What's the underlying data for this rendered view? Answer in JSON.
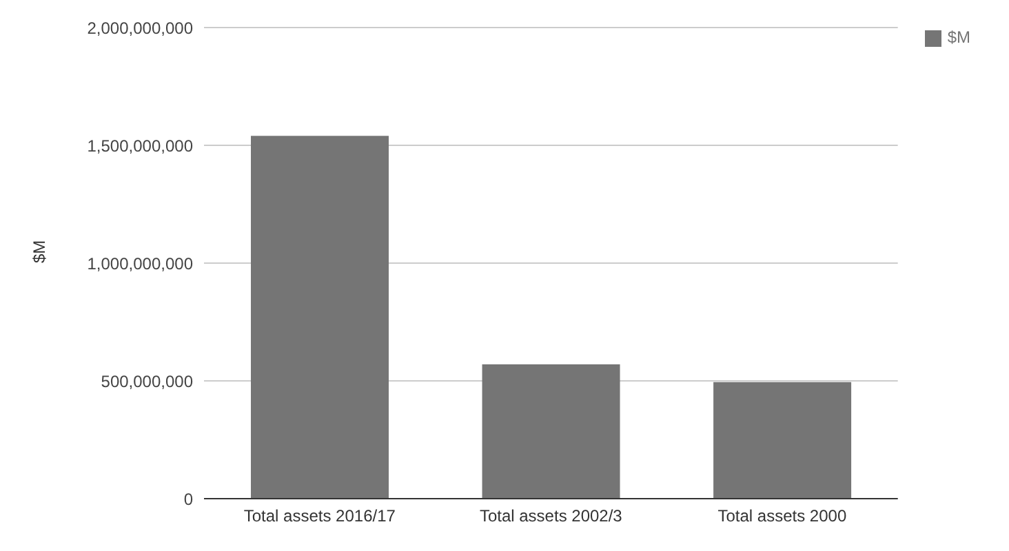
{
  "chart_data": {
    "type": "bar",
    "ylabel": "$M",
    "categories": [
      "Total assets 2016/17",
      "Total assets 2002/3",
      "Total assets 2000"
    ],
    "series": [
      {
        "name": "$M",
        "color": "#757575",
        "values": [
          1540000000,
          570000000,
          495000000
        ]
      }
    ],
    "ylim": [
      0,
      2000000000
    ],
    "yticks": [
      0,
      {
        "value": 500000000,
        "label": "500,000,000"
      },
      {
        "value": 1000000000,
        "label": "1,000,000,000"
      },
      {
        "value": 1500000000,
        "label": "1,500,000,000"
      },
      {
        "value": 2000000000,
        "label": "2,000,000,000"
      }
    ],
    "grid": "y",
    "legend": "top right"
  }
}
